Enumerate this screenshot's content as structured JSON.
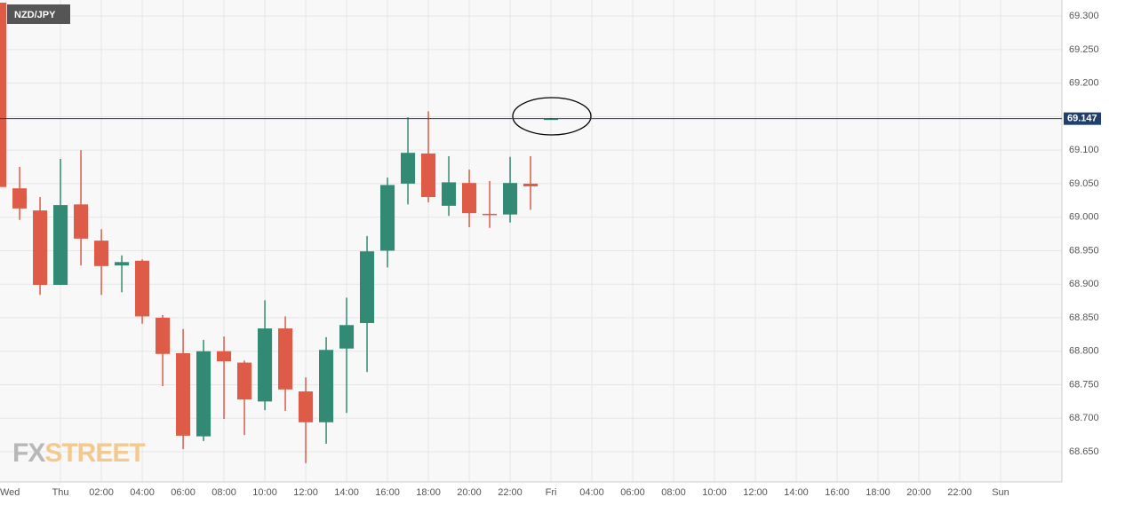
{
  "chart_data": {
    "type": "candlestick",
    "symbol": "NZD/JPY",
    "logo": [
      "FX",
      "STREET"
    ],
    "x": [
      -3,
      -2,
      -1,
      0,
      1,
      2,
      3,
      4,
      5,
      6,
      7,
      8,
      9,
      10,
      11,
      12,
      13,
      14,
      15,
      16,
      17,
      18,
      19,
      20,
      21,
      22,
      23,
      24
    ],
    "open": [
      69.32,
      69.043,
      69.01,
      68.899,
      69.019,
      68.965,
      68.928,
      68.935,
      68.85,
      68.797,
      68.673,
      68.8,
      68.783,
      68.725,
      68.834,
      68.74,
      68.694,
      68.804,
      68.842,
      68.95,
      69.05,
      69.095,
      69.017,
      69.051,
      69.005,
      69.004,
      69.05,
      69.146
    ],
    "high": [
      69.324,
      69.075,
      69.03,
      69.087,
      69.1,
      68.982,
      68.943,
      68.937,
      68.854,
      68.833,
      68.817,
      68.822,
      68.786,
      68.876,
      68.852,
      68.761,
      68.821,
      68.88,
      68.972,
      69.059,
      69.149,
      69.158,
      69.091,
      69.071,
      69.054,
      69.09,
      69.091,
      69.148
    ],
    "low": [
      68.953,
      68.996,
      68.884,
      68.899,
      68.928,
      68.884,
      68.888,
      68.841,
      68.748,
      68.654,
      68.666,
      68.699,
      68.675,
      68.712,
      68.711,
      68.633,
      68.662,
      68.708,
      68.769,
      68.925,
      69.019,
      69.022,
      69.002,
      68.985,
      68.984,
      68.992,
      69.011,
      69.146
    ],
    "close": [
      69.045,
      69.013,
      68.899,
      69.018,
      68.968,
      68.927,
      68.933,
      68.852,
      68.796,
      68.674,
      68.8,
      68.785,
      68.728,
      68.834,
      68.743,
      68.694,
      68.802,
      68.839,
      68.949,
      69.048,
      69.096,
      69.03,
      69.052,
      69.006,
      69.004,
      69.051,
      69.046,
      69.147
    ],
    "up_color": "#338a74",
    "down_color": "#dd5b47",
    "last_price": 69.147,
    "xlim": [
      -2.96,
      49
    ],
    "ylim": [
      68.605,
      69.324
    ],
    "xticks": [
      {
        "value": -3,
        "label": "Wed"
      },
      {
        "value": 0,
        "label": "Thu"
      },
      {
        "value": 2,
        "label": "02:00"
      },
      {
        "value": 4,
        "label": "04:00"
      },
      {
        "value": 6,
        "label": "06:00"
      },
      {
        "value": 8,
        "label": "08:00"
      },
      {
        "value": 10,
        "label": "10:00"
      },
      {
        "value": 12,
        "label": "12:00"
      },
      {
        "value": 14,
        "label": "14:00"
      },
      {
        "value": 16,
        "label": "16:00"
      },
      {
        "value": 18,
        "label": "18:00"
      },
      {
        "value": 20,
        "label": "20:00"
      },
      {
        "value": 22,
        "label": "22:00"
      },
      {
        "value": 24,
        "label": "Fri"
      },
      {
        "value": 26,
        "label": "04:00"
      },
      {
        "value": 28,
        "label": "06:00"
      },
      {
        "value": 30,
        "label": "08:00"
      },
      {
        "value": 32,
        "label": "10:00"
      },
      {
        "value": 34,
        "label": "12:00"
      },
      {
        "value": 36,
        "label": "14:00"
      },
      {
        "value": 38,
        "label": "16:00"
      },
      {
        "value": 40,
        "label": "18:00"
      },
      {
        "value": 42,
        "label": "20:00"
      },
      {
        "value": 44,
        "label": "22:00"
      },
      {
        "value": 46,
        "label": "Sun"
      }
    ],
    "yticks": [
      {
        "value": 68.65,
        "label": "68.650"
      },
      {
        "value": 68.7,
        "label": "68.700"
      },
      {
        "value": 68.75,
        "label": "68.750"
      },
      {
        "value": 68.8,
        "label": "68.800"
      },
      {
        "value": 68.85,
        "label": "68.850"
      },
      {
        "value": 68.9,
        "label": "68.900"
      },
      {
        "value": 68.95,
        "label": "68.950"
      },
      {
        "value": 69.0,
        "label": "69.000"
      },
      {
        "value": 69.05,
        "label": "69.050"
      },
      {
        "value": 69.1,
        "label": "69.100"
      },
      {
        "value": 69.15,
        "label": "69.150"
      },
      {
        "value": 69.2,
        "label": "69.200"
      },
      {
        "value": 69.25,
        "label": "69.250"
      },
      {
        "value": 69.3,
        "label": "69.300"
      }
    ],
    "grid": true
  }
}
